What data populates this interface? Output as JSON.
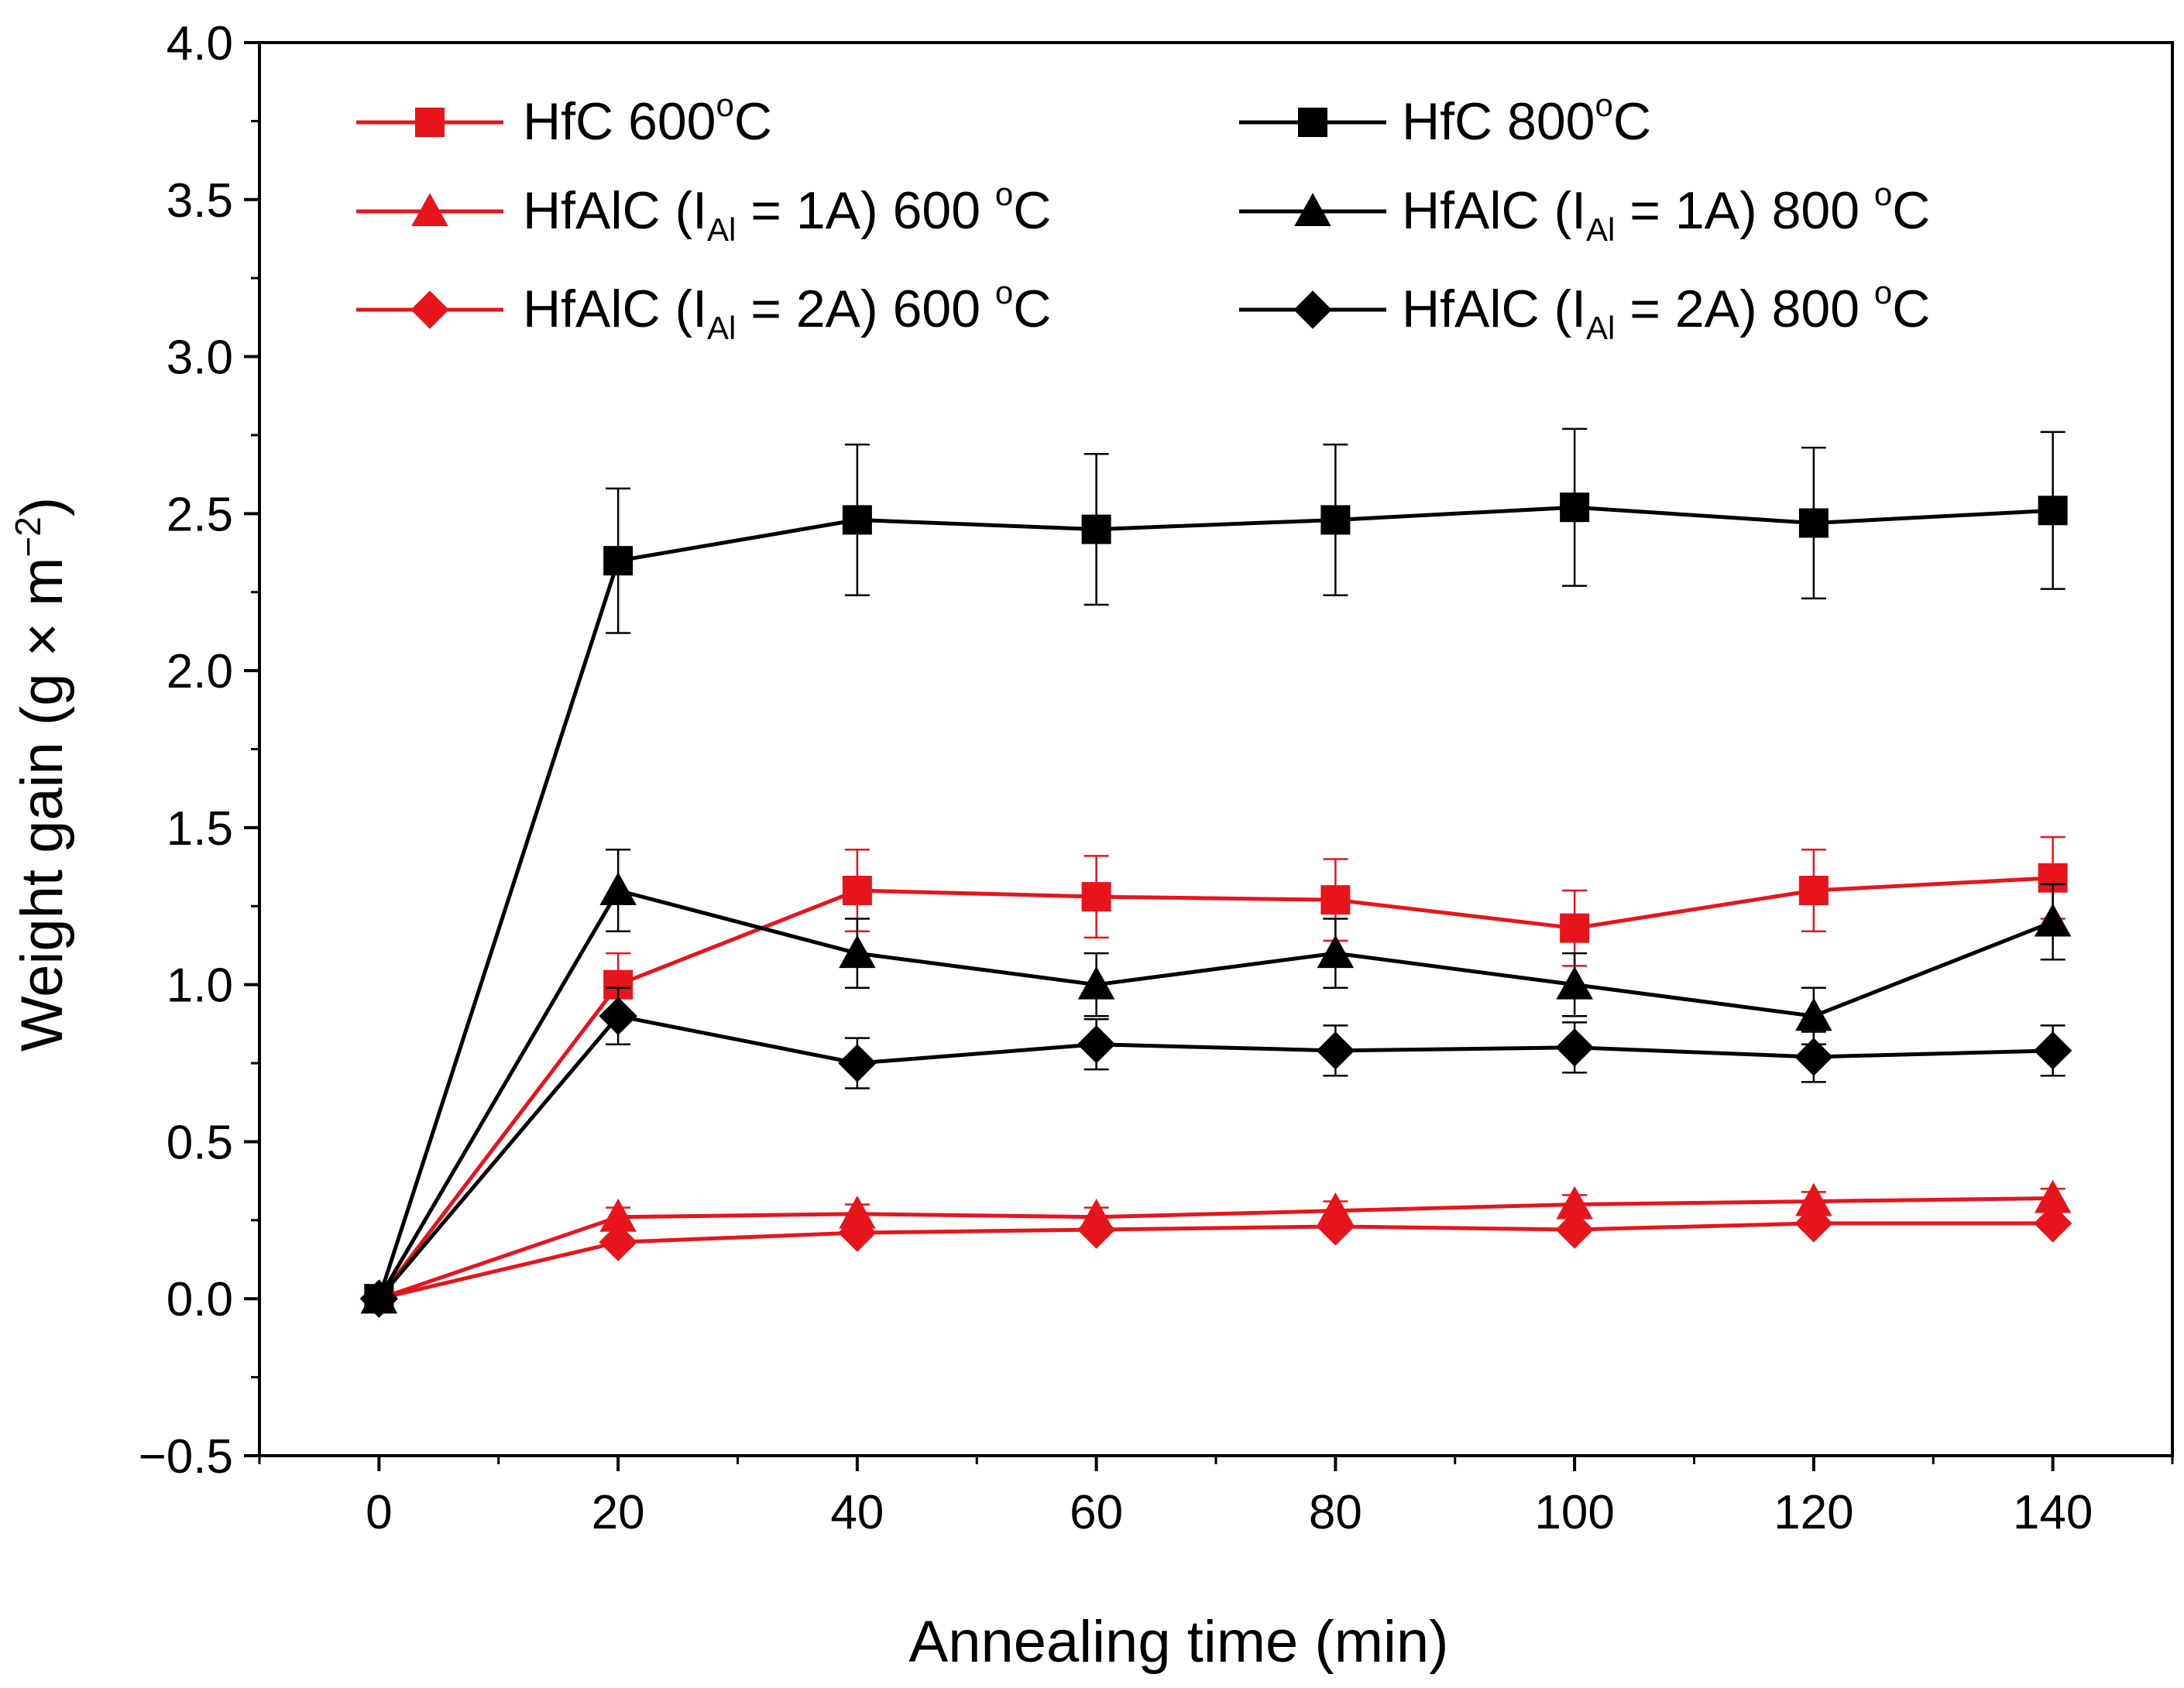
{
  "chart_data": {
    "type": "line",
    "title": "",
    "xlabel": "Annealing time (min)",
    "ylabel": {
      "main": "Weight gain (g × m",
      "sup": "−2",
      "close": ")"
    },
    "xlim": [
      -10,
      150
    ],
    "ylim": [
      -0.5,
      4.0
    ],
    "x_ticks": [
      0,
      20,
      40,
      60,
      80,
      100,
      120,
      140
    ],
    "x_tick_labels": [
      "0",
      "20",
      "40",
      "60",
      "80",
      "100",
      "120",
      "140"
    ],
    "y_ticks": [
      -0.5,
      0.0,
      0.5,
      1.0,
      1.5,
      2.0,
      2.5,
      3.0,
      3.5,
      4.0
    ],
    "y_tick_labels": [
      "−0.5",
      "0.0",
      "0.5",
      "1.0",
      "1.5",
      "2.0",
      "2.5",
      "3.0",
      "3.5",
      "4.0"
    ],
    "grid": false,
    "legend_position": "top",
    "x": [
      0,
      20,
      40,
      60,
      80,
      100,
      120,
      140
    ],
    "series": [
      {
        "name": "HfC 600oC",
        "legend": {
          "pre": "HfC 600",
          "sup": "o",
          "post": "C"
        },
        "color": "#e8141c",
        "marker": "square",
        "values": [
          0.0,
          1.0,
          1.3,
          1.28,
          1.27,
          1.18,
          1.3,
          1.34
        ],
        "errors": [
          0.0,
          0.1,
          0.13,
          0.13,
          0.13,
          0.12,
          0.13,
          0.13
        ]
      },
      {
        "name": "HfC 800oC",
        "legend": {
          "pre": "HfC 800",
          "sup": "o",
          "post": "C"
        },
        "color": "#000000",
        "marker": "square",
        "values": [
          0.0,
          2.35,
          2.48,
          2.45,
          2.48,
          2.52,
          2.47,
          2.51
        ],
        "errors": [
          0.0,
          0.23,
          0.24,
          0.24,
          0.24,
          0.25,
          0.24,
          0.25
        ]
      },
      {
        "name": "HfAlC (IAl = 1A) 600 oC",
        "legend": {
          "pre": "HfAlC (I",
          "sub": "Al",
          "mid": " = 1A) 600 ",
          "sup": "o",
          "post": "C"
        },
        "color": "#e8141c",
        "marker": "triangle",
        "values": [
          0.0,
          0.26,
          0.27,
          0.26,
          0.28,
          0.3,
          0.31,
          0.32
        ],
        "errors": [
          0.0,
          0.03,
          0.03,
          0.03,
          0.03,
          0.03,
          0.03,
          0.03
        ]
      },
      {
        "name": "HfAlC (IAl = 1A) 800 oC",
        "legend": {
          "pre": "HfAlC (I",
          "sub": "Al",
          "mid": " = 1A) 800 ",
          "sup": "o",
          "post": "C"
        },
        "color": "#000000",
        "marker": "triangle",
        "values": [
          0.0,
          1.3,
          1.1,
          1.0,
          1.1,
          1.0,
          0.9,
          1.2
        ],
        "errors": [
          0.0,
          0.13,
          0.11,
          0.1,
          0.11,
          0.1,
          0.09,
          0.12
        ]
      },
      {
        "name": "HfAlC (IAl = 2A) 600 oC",
        "legend": {
          "pre": "HfAlC (I",
          "sub": "Al",
          "mid": " = 2A) 600 ",
          "sup": "o",
          "post": "C"
        },
        "color": "#e8141c",
        "marker": "diamond",
        "values": [
          0.0,
          0.18,
          0.21,
          0.22,
          0.23,
          0.22,
          0.24,
          0.24
        ],
        "errors": [
          0.0,
          0.02,
          0.02,
          0.02,
          0.02,
          0.02,
          0.02,
          0.02
        ]
      },
      {
        "name": "HfAlC (IAl = 2A) 800 oC",
        "legend": {
          "pre": "HfAlC (I",
          "sub": "Al",
          "mid": " = 2A) 800 ",
          "sup": "o",
          "post": "C"
        },
        "color": "#000000",
        "marker": "diamond",
        "values": [
          0.0,
          0.9,
          0.75,
          0.81,
          0.79,
          0.8,
          0.77,
          0.79
        ],
        "errors": [
          0.0,
          0.09,
          0.08,
          0.08,
          0.08,
          0.08,
          0.08,
          0.08
        ]
      }
    ]
  }
}
